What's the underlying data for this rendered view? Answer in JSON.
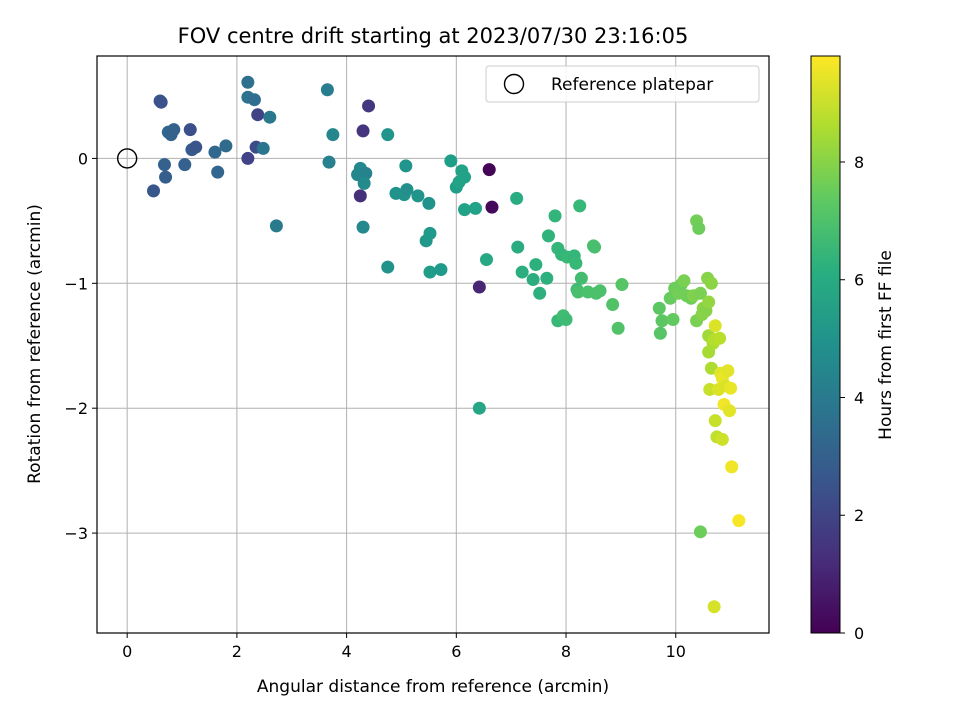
{
  "chart_data": {
    "type": "scatter",
    "title": "FOV centre drift starting at 2023/07/30 23:16:05",
    "xlabel": "Angular distance from reference (arcmin)",
    "ylabel": "Rotation from reference (arcmin)",
    "xlim": [
      -0.55,
      11.7
    ],
    "ylim": [
      -3.8,
      0.82
    ],
    "xticks": [
      0,
      2,
      4,
      6,
      8,
      10
    ],
    "xtick_labels": [
      "0",
      "2",
      "4",
      "6",
      "8",
      "10"
    ],
    "yticks": [
      0,
      -1,
      -2,
      -3
    ],
    "ytick_labels": [
      "0",
      "−1",
      "−2",
      "−3"
    ],
    "grid": true,
    "legend": {
      "placement": "top-right",
      "entries": [
        {
          "label": "Reference platepar",
          "marker": "open-circle"
        }
      ]
    },
    "reference_point": {
      "x": 0,
      "y": 0
    },
    "colorbar": {
      "label": "Hours from first FF file",
      "colormap": "viridis",
      "range": [
        0,
        9.8
      ],
      "ticks": [
        0,
        2,
        4,
        6,
        8
      ],
      "tick_labels": [
        "0",
        "2",
        "4",
        "6",
        "8"
      ]
    },
    "points": [
      {
        "x": 0.48,
        "y": -0.26,
        "c": 2.6
      },
      {
        "x": 0.6,
        "y": 0.46,
        "c": 2.6
      },
      {
        "x": 0.62,
        "y": 0.45,
        "c": 2.5
      },
      {
        "x": 0.68,
        "y": -0.05,
        "c": 3.0
      },
      {
        "x": 0.7,
        "y": -0.15,
        "c": 2.9
      },
      {
        "x": 0.75,
        "y": 0.21,
        "c": 3.2
      },
      {
        "x": 0.8,
        "y": 0.19,
        "c": 3.1
      },
      {
        "x": 0.85,
        "y": 0.23,
        "c": 3.1
      },
      {
        "x": 1.05,
        "y": -0.05,
        "c": 3.0
      },
      {
        "x": 1.15,
        "y": 0.23,
        "c": 2.4
      },
      {
        "x": 1.18,
        "y": 0.07,
        "c": 2.8
      },
      {
        "x": 1.25,
        "y": 0.09,
        "c": 2.6
      },
      {
        "x": 1.6,
        "y": 0.05,
        "c": 3.3
      },
      {
        "x": 1.65,
        "y": -0.11,
        "c": 3.2
      },
      {
        "x": 1.8,
        "y": 0.1,
        "c": 3.4
      },
      {
        "x": 2.2,
        "y": 0.61,
        "c": 3.6
      },
      {
        "x": 2.2,
        "y": 0.49,
        "c": 3.7
      },
      {
        "x": 2.2,
        "y": 0.0,
        "c": 2.0
      },
      {
        "x": 2.32,
        "y": 0.47,
        "c": 3.5
      },
      {
        "x": 2.35,
        "y": 0.09,
        "c": 2.2
      },
      {
        "x": 2.38,
        "y": 0.35,
        "c": 2.0
      },
      {
        "x": 2.48,
        "y": 0.08,
        "c": 3.8
      },
      {
        "x": 2.6,
        "y": 0.33,
        "c": 3.9
      },
      {
        "x": 2.72,
        "y": -0.54,
        "c": 4.0
      },
      {
        "x": 3.65,
        "y": 0.55,
        "c": 4.2
      },
      {
        "x": 3.68,
        "y": -0.03,
        "c": 4.3
      },
      {
        "x": 3.75,
        "y": 0.19,
        "c": 4.5
      },
      {
        "x": 4.2,
        "y": -0.13,
        "c": 4.5
      },
      {
        "x": 4.25,
        "y": -0.3,
        "c": 1.3
      },
      {
        "x": 4.25,
        "y": -0.08,
        "c": 4.6
      },
      {
        "x": 4.3,
        "y": 0.22,
        "c": 1.5
      },
      {
        "x": 4.3,
        "y": -0.55,
        "c": 4.6
      },
      {
        "x": 4.35,
        "y": -0.12,
        "c": 4.4
      },
      {
        "x": 4.32,
        "y": -0.2,
        "c": 4.7
      },
      {
        "x": 4.4,
        "y": 0.42,
        "c": 1.6
      },
      {
        "x": 4.75,
        "y": 0.19,
        "c": 5.1
      },
      {
        "x": 4.75,
        "y": -0.87,
        "c": 5.0
      },
      {
        "x": 4.9,
        "y": -0.28,
        "c": 5.0
      },
      {
        "x": 5.05,
        "y": -0.29,
        "c": 5.0
      },
      {
        "x": 5.08,
        "y": -0.06,
        "c": 5.1
      },
      {
        "x": 5.1,
        "y": -0.25,
        "c": 4.9
      },
      {
        "x": 5.3,
        "y": -0.3,
        "c": 5.1
      },
      {
        "x": 5.45,
        "y": -0.66,
        "c": 5.2
      },
      {
        "x": 5.5,
        "y": -0.36,
        "c": 5.0
      },
      {
        "x": 5.52,
        "y": -0.6,
        "c": 5.3
      },
      {
        "x": 5.52,
        "y": -0.91,
        "c": 5.4
      },
      {
        "x": 5.72,
        "y": -0.89,
        "c": 5.3
      },
      {
        "x": 5.9,
        "y": -0.02,
        "c": 5.5
      },
      {
        "x": 6.0,
        "y": -0.23,
        "c": 5.5
      },
      {
        "x": 6.05,
        "y": -0.19,
        "c": 5.6
      },
      {
        "x": 6.1,
        "y": -0.1,
        "c": 5.6
      },
      {
        "x": 6.15,
        "y": -0.15,
        "c": 5.6
      },
      {
        "x": 6.15,
        "y": -0.41,
        "c": 5.6
      },
      {
        "x": 6.35,
        "y": -0.4,
        "c": 5.6
      },
      {
        "x": 6.42,
        "y": -1.03,
        "c": 1.0
      },
      {
        "x": 6.42,
        "y": -2.0,
        "c": 5.8
      },
      {
        "x": 6.55,
        "y": -0.81,
        "c": 5.9
      },
      {
        "x": 6.6,
        "y": -0.09,
        "c": 0.1
      },
      {
        "x": 6.65,
        "y": -0.39,
        "c": 0.2
      },
      {
        "x": 7.1,
        "y": -0.32,
        "c": 6.0
      },
      {
        "x": 7.12,
        "y": -0.71,
        "c": 6.0
      },
      {
        "x": 7.2,
        "y": -0.91,
        "c": 6.1
      },
      {
        "x": 7.4,
        "y": -0.97,
        "c": 6.1
      },
      {
        "x": 7.45,
        "y": -0.85,
        "c": 6.2
      },
      {
        "x": 7.52,
        "y": -1.08,
        "c": 6.2
      },
      {
        "x": 7.65,
        "y": -0.96,
        "c": 6.2
      },
      {
        "x": 7.68,
        "y": -0.62,
        "c": 6.3
      },
      {
        "x": 7.8,
        "y": -0.46,
        "c": 6.4
      },
      {
        "x": 7.85,
        "y": -0.72,
        "c": 6.5
      },
      {
        "x": 7.85,
        "y": -1.3,
        "c": 6.6
      },
      {
        "x": 7.92,
        "y": -0.77,
        "c": 6.4
      },
      {
        "x": 7.95,
        "y": -1.26,
        "c": 6.8
      },
      {
        "x": 8.0,
        "y": -1.29,
        "c": 6.7
      },
      {
        "x": 8.02,
        "y": -0.79,
        "c": 6.6
      },
      {
        "x": 8.15,
        "y": -0.78,
        "c": 6.5
      },
      {
        "x": 8.18,
        "y": -0.84,
        "c": 6.6
      },
      {
        "x": 8.2,
        "y": -1.05,
        "c": 6.7
      },
      {
        "x": 8.22,
        "y": -1.07,
        "c": 6.9
      },
      {
        "x": 8.25,
        "y": -0.38,
        "c": 6.6
      },
      {
        "x": 8.28,
        "y": -0.96,
        "c": 6.8
      },
      {
        "x": 8.4,
        "y": -1.07,
        "c": 7.0
      },
      {
        "x": 8.5,
        "y": -0.7,
        "c": 7.0
      },
      {
        "x": 8.52,
        "y": -0.71,
        "c": 6.9
      },
      {
        "x": 8.55,
        "y": -1.08,
        "c": 7.0
      },
      {
        "x": 8.62,
        "y": -1.06,
        "c": 7.0
      },
      {
        "x": 8.85,
        "y": -1.17,
        "c": 7.1
      },
      {
        "x": 8.95,
        "y": -1.36,
        "c": 7.1
      },
      {
        "x": 9.02,
        "y": -1.01,
        "c": 7.2
      },
      {
        "x": 9.7,
        "y": -1.2,
        "c": 7.3
      },
      {
        "x": 9.72,
        "y": -1.4,
        "c": 7.2
      },
      {
        "x": 9.75,
        "y": -1.3,
        "c": 7.3
      },
      {
        "x": 9.9,
        "y": -1.12,
        "c": 7.5
      },
      {
        "x": 9.95,
        "y": -1.29,
        "c": 7.4
      },
      {
        "x": 9.98,
        "y": -1.04,
        "c": 7.6
      },
      {
        "x": 10.05,
        "y": -1.08,
        "c": 7.7
      },
      {
        "x": 10.1,
        "y": -1.01,
        "c": 7.6
      },
      {
        "x": 10.15,
        "y": -0.98,
        "c": 7.8
      },
      {
        "x": 10.2,
        "y": -1.1,
        "c": 7.7
      },
      {
        "x": 10.28,
        "y": -1.12,
        "c": 7.6
      },
      {
        "x": 10.32,
        "y": -1.1,
        "c": 7.9
      },
      {
        "x": 10.38,
        "y": -0.5,
        "c": 7.7
      },
      {
        "x": 10.38,
        "y": -1.3,
        "c": 7.8
      },
      {
        "x": 10.42,
        "y": -0.56,
        "c": 7.6
      },
      {
        "x": 10.45,
        "y": -1.08,
        "c": 7.8
      },
      {
        "x": 10.48,
        "y": -1.25,
        "c": 8.0
      },
      {
        "x": 10.5,
        "y": -1.2,
        "c": 8.1
      },
      {
        "x": 10.45,
        "y": -2.99,
        "c": 7.6
      },
      {
        "x": 10.55,
        "y": -1.22,
        "c": 8.0
      },
      {
        "x": 10.58,
        "y": -0.96,
        "c": 8.0
      },
      {
        "x": 10.6,
        "y": -1.15,
        "c": 8.2
      },
      {
        "x": 10.6,
        "y": -1.42,
        "c": 8.4
      },
      {
        "x": 10.6,
        "y": -1.55,
        "c": 8.5
      },
      {
        "x": 10.62,
        "y": -1.85,
        "c": 9.0
      },
      {
        "x": 10.65,
        "y": -1.0,
        "c": 8.1
      },
      {
        "x": 10.65,
        "y": -1.68,
        "c": 8.6
      },
      {
        "x": 10.68,
        "y": -1.48,
        "c": 8.6
      },
      {
        "x": 10.7,
        "y": -1.45,
        "c": 8.7
      },
      {
        "x": 10.7,
        "y": -3.59,
        "c": 9.2
      },
      {
        "x": 10.72,
        "y": -1.34,
        "c": 9.3
      },
      {
        "x": 10.72,
        "y": -2.1,
        "c": 9.0
      },
      {
        "x": 10.75,
        "y": -2.23,
        "c": 8.9
      },
      {
        "x": 10.78,
        "y": -1.85,
        "c": 9.3
      },
      {
        "x": 10.8,
        "y": -1.44,
        "c": 8.8
      },
      {
        "x": 10.82,
        "y": -1.72,
        "c": 9.4
      },
      {
        "x": 10.85,
        "y": -1.76,
        "c": 9.5
      },
      {
        "x": 10.85,
        "y": -2.25,
        "c": 9.1
      },
      {
        "x": 10.88,
        "y": -1.97,
        "c": 9.6
      },
      {
        "x": 10.9,
        "y": -1.82,
        "c": 9.3
      },
      {
        "x": 10.95,
        "y": -1.7,
        "c": 9.4
      },
      {
        "x": 10.98,
        "y": -2.02,
        "c": 9.4
      },
      {
        "x": 11.0,
        "y": -1.84,
        "c": 9.5
      },
      {
        "x": 11.02,
        "y": -2.47,
        "c": 9.6
      },
      {
        "x": 11.15,
        "y": -2.9,
        "c": 9.7
      }
    ]
  }
}
